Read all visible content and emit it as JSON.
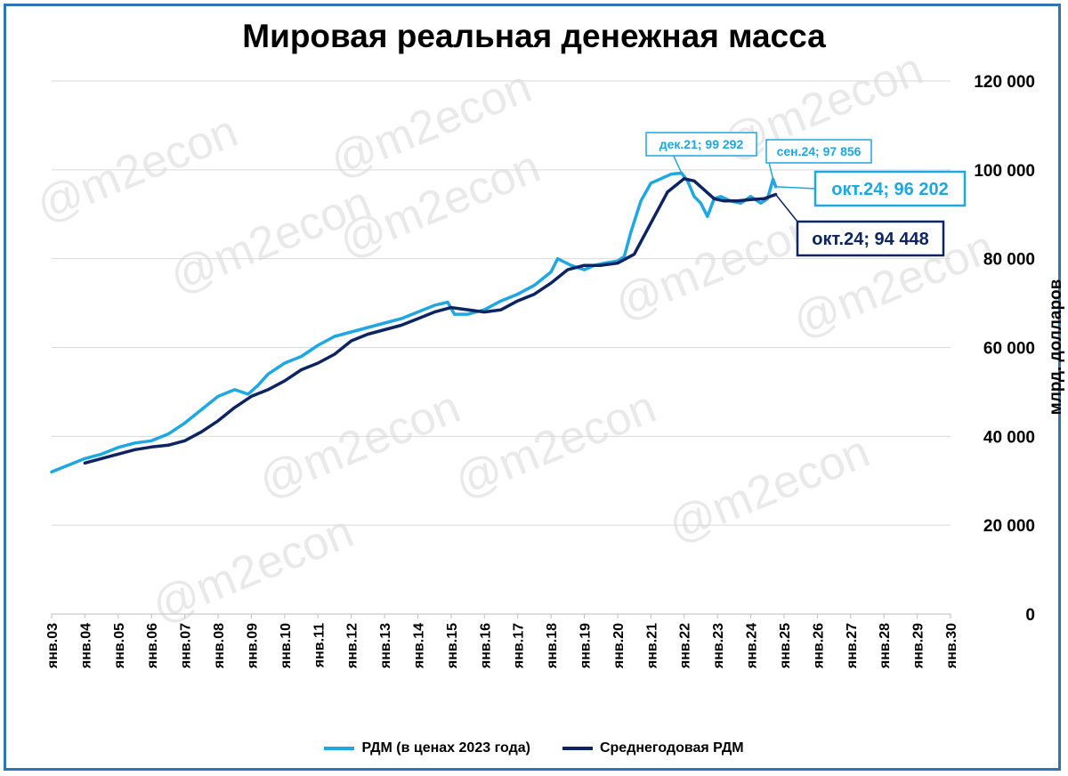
{
  "chart_data": {
    "type": "line",
    "title": "Мировая реальная денежная масса",
    "ylabel": "млрд. долларов",
    "ylim": [
      0,
      120000
    ],
    "y_ticks": [
      "0",
      "20 000",
      "40 000",
      "60 000",
      "80 000",
      "100 000",
      "120 000"
    ],
    "x_ticks": [
      "янв.03",
      "янв.04",
      "янв.05",
      "янв.06",
      "янв.07",
      "янв.08",
      "янв.09",
      "янв.10",
      "янв.11",
      "янв.12",
      "янв.13",
      "янв.14",
      "янв.15",
      "янв.16",
      "янв.17",
      "янв.18",
      "янв.19",
      "янв.20",
      "янв.21",
      "янв.22",
      "янв.23",
      "янв.24",
      "янв.25",
      "янв.26",
      "янв.27",
      "янв.28",
      "янв.29",
      "янв.30"
    ],
    "xlim": [
      2003.0,
      2030.0
    ],
    "grid": true,
    "legend_position": "bottom",
    "series": [
      {
        "name": "РДМ (в ценах 2023 года)",
        "color": "#1ea7e1",
        "x": [
          2003.0,
          2003.5,
          2004.0,
          2004.5,
          2005.0,
          2005.5,
          2006.0,
          2006.5,
          2007.0,
          2007.5,
          2008.0,
          2008.5,
          2008.9,
          2009.2,
          2009.5,
          2010.0,
          2010.5,
          2011.0,
          2011.5,
          2012.0,
          2012.5,
          2013.0,
          2013.5,
          2014.0,
          2014.5,
          2014.9,
          2015.1,
          2015.5,
          2016.0,
          2016.5,
          2017.0,
          2017.5,
          2018.0,
          2018.2,
          2018.6,
          2019.0,
          2019.3,
          2019.6,
          2020.0,
          2020.2,
          2020.4,
          2020.7,
          2021.0,
          2021.3,
          2021.6,
          2021.92,
          2022.1,
          2022.3,
          2022.5,
          2022.7,
          2022.9,
          2023.1,
          2023.4,
          2023.7,
          2024.0,
          2024.3,
          2024.5,
          2024.67,
          2024.75
        ],
        "y": [
          32000,
          33500,
          35000,
          36000,
          37500,
          38500,
          39000,
          40500,
          43000,
          46000,
          49000,
          50500,
          49500,
          51500,
          54000,
          56500,
          58000,
          60500,
          62500,
          63500,
          64500,
          65500,
          66500,
          68000,
          69500,
          70200,
          67500,
          67500,
          68500,
          70500,
          72000,
          74000,
          77000,
          80000,
          78500,
          77500,
          78500,
          79000,
          79500,
          80500,
          86000,
          93000,
          97000,
          98000,
          99000,
          99292,
          97500,
          94000,
          92500,
          89500,
          93500,
          94000,
          93000,
          92500,
          94000,
          92500,
          93500,
          97856,
          96202
        ]
      },
      {
        "name": "Среднегодовая РДМ",
        "color": "#0c2461",
        "x": [
          2004.0,
          2004.5,
          2005.0,
          2005.5,
          2006.0,
          2006.5,
          2007.0,
          2007.5,
          2008.0,
          2008.5,
          2009.0,
          2009.5,
          2010.0,
          2010.5,
          2011.0,
          2011.5,
          2012.0,
          2012.5,
          2013.0,
          2013.5,
          2014.0,
          2014.5,
          2015.0,
          2015.5,
          2016.0,
          2016.5,
          2017.0,
          2017.5,
          2018.0,
          2018.5,
          2019.0,
          2019.5,
          2020.0,
          2020.5,
          2021.0,
          2021.5,
          2022.0,
          2022.3,
          2022.6,
          2022.9,
          2023.2,
          2023.6,
          2024.0,
          2024.4,
          2024.75
        ],
        "y": [
          34000,
          35000,
          36000,
          37000,
          37600,
          38000,
          39000,
          41000,
          43500,
          46500,
          49000,
          50500,
          52500,
          55000,
          56500,
          58500,
          61500,
          63000,
          64000,
          65000,
          66500,
          68000,
          69000,
          68500,
          68000,
          68500,
          70500,
          72000,
          74500,
          77500,
          78500,
          78500,
          79000,
          81000,
          88000,
          95000,
          98000,
          97500,
          95500,
          93500,
          93000,
          93000,
          93300,
          93500,
          94448
        ]
      }
    ],
    "annotations": [
      {
        "label": "дек.21; 99 292",
        "color": "#1ea7e1"
      },
      {
        "label": "сен.24;  97 856",
        "color": "#1ea7e1"
      },
      {
        "label": "окт.24;  96 202",
        "color": "#1ea7e1"
      },
      {
        "label": "окт.24; 94 448",
        "color": "#0c2461"
      }
    ],
    "watermark": "@m2econ"
  }
}
